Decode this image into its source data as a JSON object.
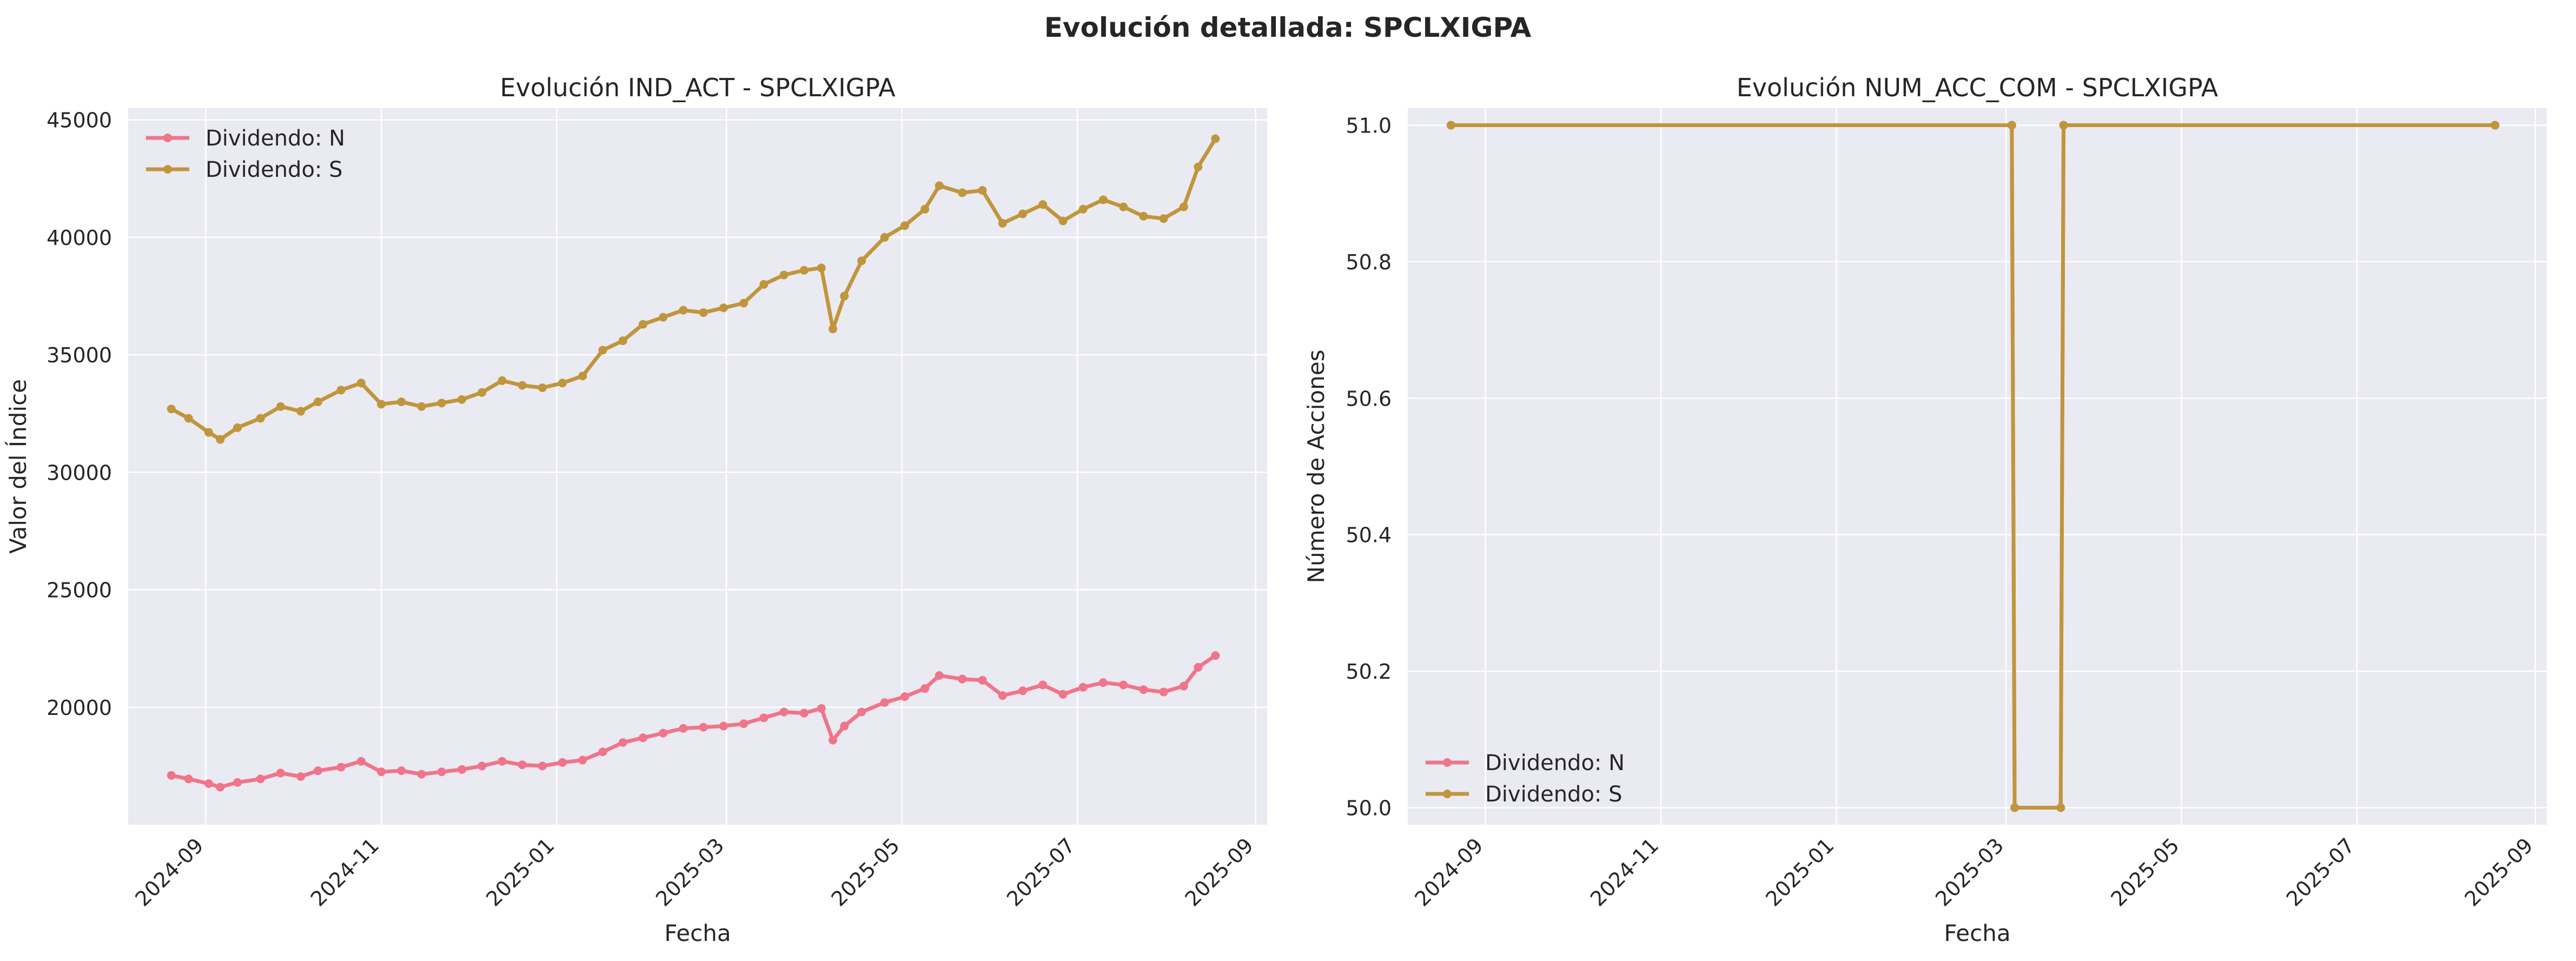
{
  "figure": {
    "suptitle": "Evolución detallada: SPCLXIGPA"
  },
  "colors": {
    "series_n": "#f0758a",
    "series_s": "#c0963c",
    "plot_bg": "#eaeaf2",
    "grid": "#ffffff"
  },
  "chart_data": [
    {
      "type": "line",
      "title": "Evolución IND_ACT - SPCLXIGPA",
      "xlabel": "Fecha",
      "ylabel": "Valor del Índice",
      "xlim": [
        "2024-08-05",
        "2025-09-05"
      ],
      "ylim": [
        15000,
        45500
      ],
      "xticks": [
        "2024-09",
        "2024-11",
        "2025-01",
        "2025-03",
        "2025-05",
        "2025-07",
        "2025-09"
      ],
      "xtick_dates": [
        "2024-09-01",
        "2024-11-01",
        "2025-01-01",
        "2025-03-01",
        "2025-05-01",
        "2025-07-01",
        "2025-09-01"
      ],
      "yticks": [
        20000,
        25000,
        30000,
        35000,
        40000,
        45000
      ],
      "ytick_labels": [
        "20000",
        "25000",
        "30000",
        "35000",
        "40000",
        "45000"
      ],
      "grid": true,
      "legend_position": "upper-left",
      "series": [
        {
          "name": "Dividendo: N",
          "x": [
            "2024-08-20",
            "2024-08-26",
            "2024-09-02",
            "2024-09-06",
            "2024-09-12",
            "2024-09-20",
            "2024-09-27",
            "2024-10-04",
            "2024-10-10",
            "2024-10-18",
            "2024-10-25",
            "2024-11-01",
            "2024-11-08",
            "2024-11-15",
            "2024-11-22",
            "2024-11-29",
            "2024-12-06",
            "2024-12-13",
            "2024-12-20",
            "2024-12-27",
            "2025-01-03",
            "2025-01-10",
            "2025-01-17",
            "2025-01-24",
            "2025-01-31",
            "2025-02-07",
            "2025-02-14",
            "2025-02-21",
            "2025-02-28",
            "2025-03-07",
            "2025-03-14",
            "2025-03-21",
            "2025-03-28",
            "2025-04-03",
            "2025-04-07",
            "2025-04-11",
            "2025-04-17",
            "2025-04-25",
            "2025-05-02",
            "2025-05-09",
            "2025-05-14",
            "2025-05-22",
            "2025-05-29",
            "2025-06-05",
            "2025-06-12",
            "2025-06-19",
            "2025-06-26",
            "2025-07-03",
            "2025-07-10",
            "2025-07-17",
            "2025-07-24",
            "2025-07-31",
            "2025-08-07",
            "2025-08-12",
            "2025-08-18"
          ],
          "y": [
            17100,
            16950,
            16750,
            16600,
            16800,
            16950,
            17200,
            17050,
            17300,
            17450,
            17700,
            17250,
            17300,
            17150,
            17250,
            17350,
            17500,
            17700,
            17550,
            17500,
            17650,
            17750,
            18100,
            18500,
            18700,
            18900,
            19100,
            19150,
            19200,
            19300,
            19550,
            19800,
            19750,
            19950,
            18600,
            19200,
            19800,
            20200,
            20450,
            20800,
            21350,
            21200,
            21150,
            20500,
            20700,
            20950,
            20550,
            20850,
            21050,
            20950,
            20750,
            20650,
            20900,
            21700,
            22200
          ]
        },
        {
          "name": "Dividendo: S",
          "x": [
            "2024-08-20",
            "2024-08-26",
            "2024-09-02",
            "2024-09-06",
            "2024-09-12",
            "2024-09-20",
            "2024-09-27",
            "2024-10-04",
            "2024-10-10",
            "2024-10-18",
            "2024-10-25",
            "2024-11-01",
            "2024-11-08",
            "2024-11-15",
            "2024-11-22",
            "2024-11-29",
            "2024-12-06",
            "2024-12-13",
            "2024-12-20",
            "2024-12-27",
            "2025-01-03",
            "2025-01-10",
            "2025-01-17",
            "2025-01-24",
            "2025-01-31",
            "2025-02-07",
            "2025-02-14",
            "2025-02-21",
            "2025-02-28",
            "2025-03-07",
            "2025-03-14",
            "2025-03-21",
            "2025-03-28",
            "2025-04-03",
            "2025-04-07",
            "2025-04-11",
            "2025-04-17",
            "2025-04-25",
            "2025-05-02",
            "2025-05-09",
            "2025-05-14",
            "2025-05-22",
            "2025-05-29",
            "2025-06-05",
            "2025-06-12",
            "2025-06-19",
            "2025-06-26",
            "2025-07-03",
            "2025-07-10",
            "2025-07-17",
            "2025-07-24",
            "2025-07-31",
            "2025-08-07",
            "2025-08-12",
            "2025-08-18"
          ],
          "y": [
            32700,
            32300,
            31700,
            31400,
            31900,
            32300,
            32800,
            32600,
            33000,
            33500,
            33800,
            32900,
            33000,
            32800,
            32950,
            33100,
            33400,
            33900,
            33700,
            33600,
            33800,
            34100,
            35200,
            35600,
            36300,
            36600,
            36900,
            36800,
            37000,
            37200,
            38000,
            38400,
            38600,
            38700,
            36100,
            37500,
            39000,
            40000,
            40500,
            41200,
            42200,
            41900,
            42000,
            40600,
            41000,
            41400,
            40700,
            41200,
            41600,
            41300,
            40900,
            40800,
            41300,
            43000,
            44200
          ]
        }
      ]
    },
    {
      "type": "line",
      "title": "Evolución NUM_ACC_COM - SPCLXIGPA",
      "xlabel": "Fecha",
      "ylabel": "Número de Acciones",
      "xlim": [
        "2024-08-05",
        "2025-09-05"
      ],
      "ylim": [
        49.975,
        51.025
      ],
      "xticks": [
        "2024-09",
        "2024-11",
        "2025-01",
        "2025-03",
        "2025-05",
        "2025-07",
        "2025-09"
      ],
      "xtick_dates": [
        "2024-09-01",
        "2024-11-01",
        "2025-01-01",
        "2025-03-01",
        "2025-05-01",
        "2025-07-01",
        "2025-09-01"
      ],
      "yticks": [
        50.0,
        50.2,
        50.4,
        50.6,
        50.8,
        51.0
      ],
      "ytick_labels": [
        "50.0",
        "50.2",
        "50.4",
        "50.6",
        "50.8",
        "51.0"
      ],
      "grid": true,
      "legend_position": "lower-left",
      "series": [
        {
          "name": "Dividendo: N",
          "x": [
            "2024-08-20",
            "2025-03-03",
            "2025-03-04",
            "2025-03-20",
            "2025-03-21",
            "2025-08-18"
          ],
          "y": [
            51,
            51,
            50,
            50,
            51,
            51
          ]
        },
        {
          "name": "Dividendo: S",
          "x": [
            "2024-08-20",
            "2025-03-03",
            "2025-03-04",
            "2025-03-20",
            "2025-03-21",
            "2025-08-18"
          ],
          "y": [
            51,
            51,
            50,
            50,
            51,
            51
          ]
        }
      ]
    }
  ]
}
